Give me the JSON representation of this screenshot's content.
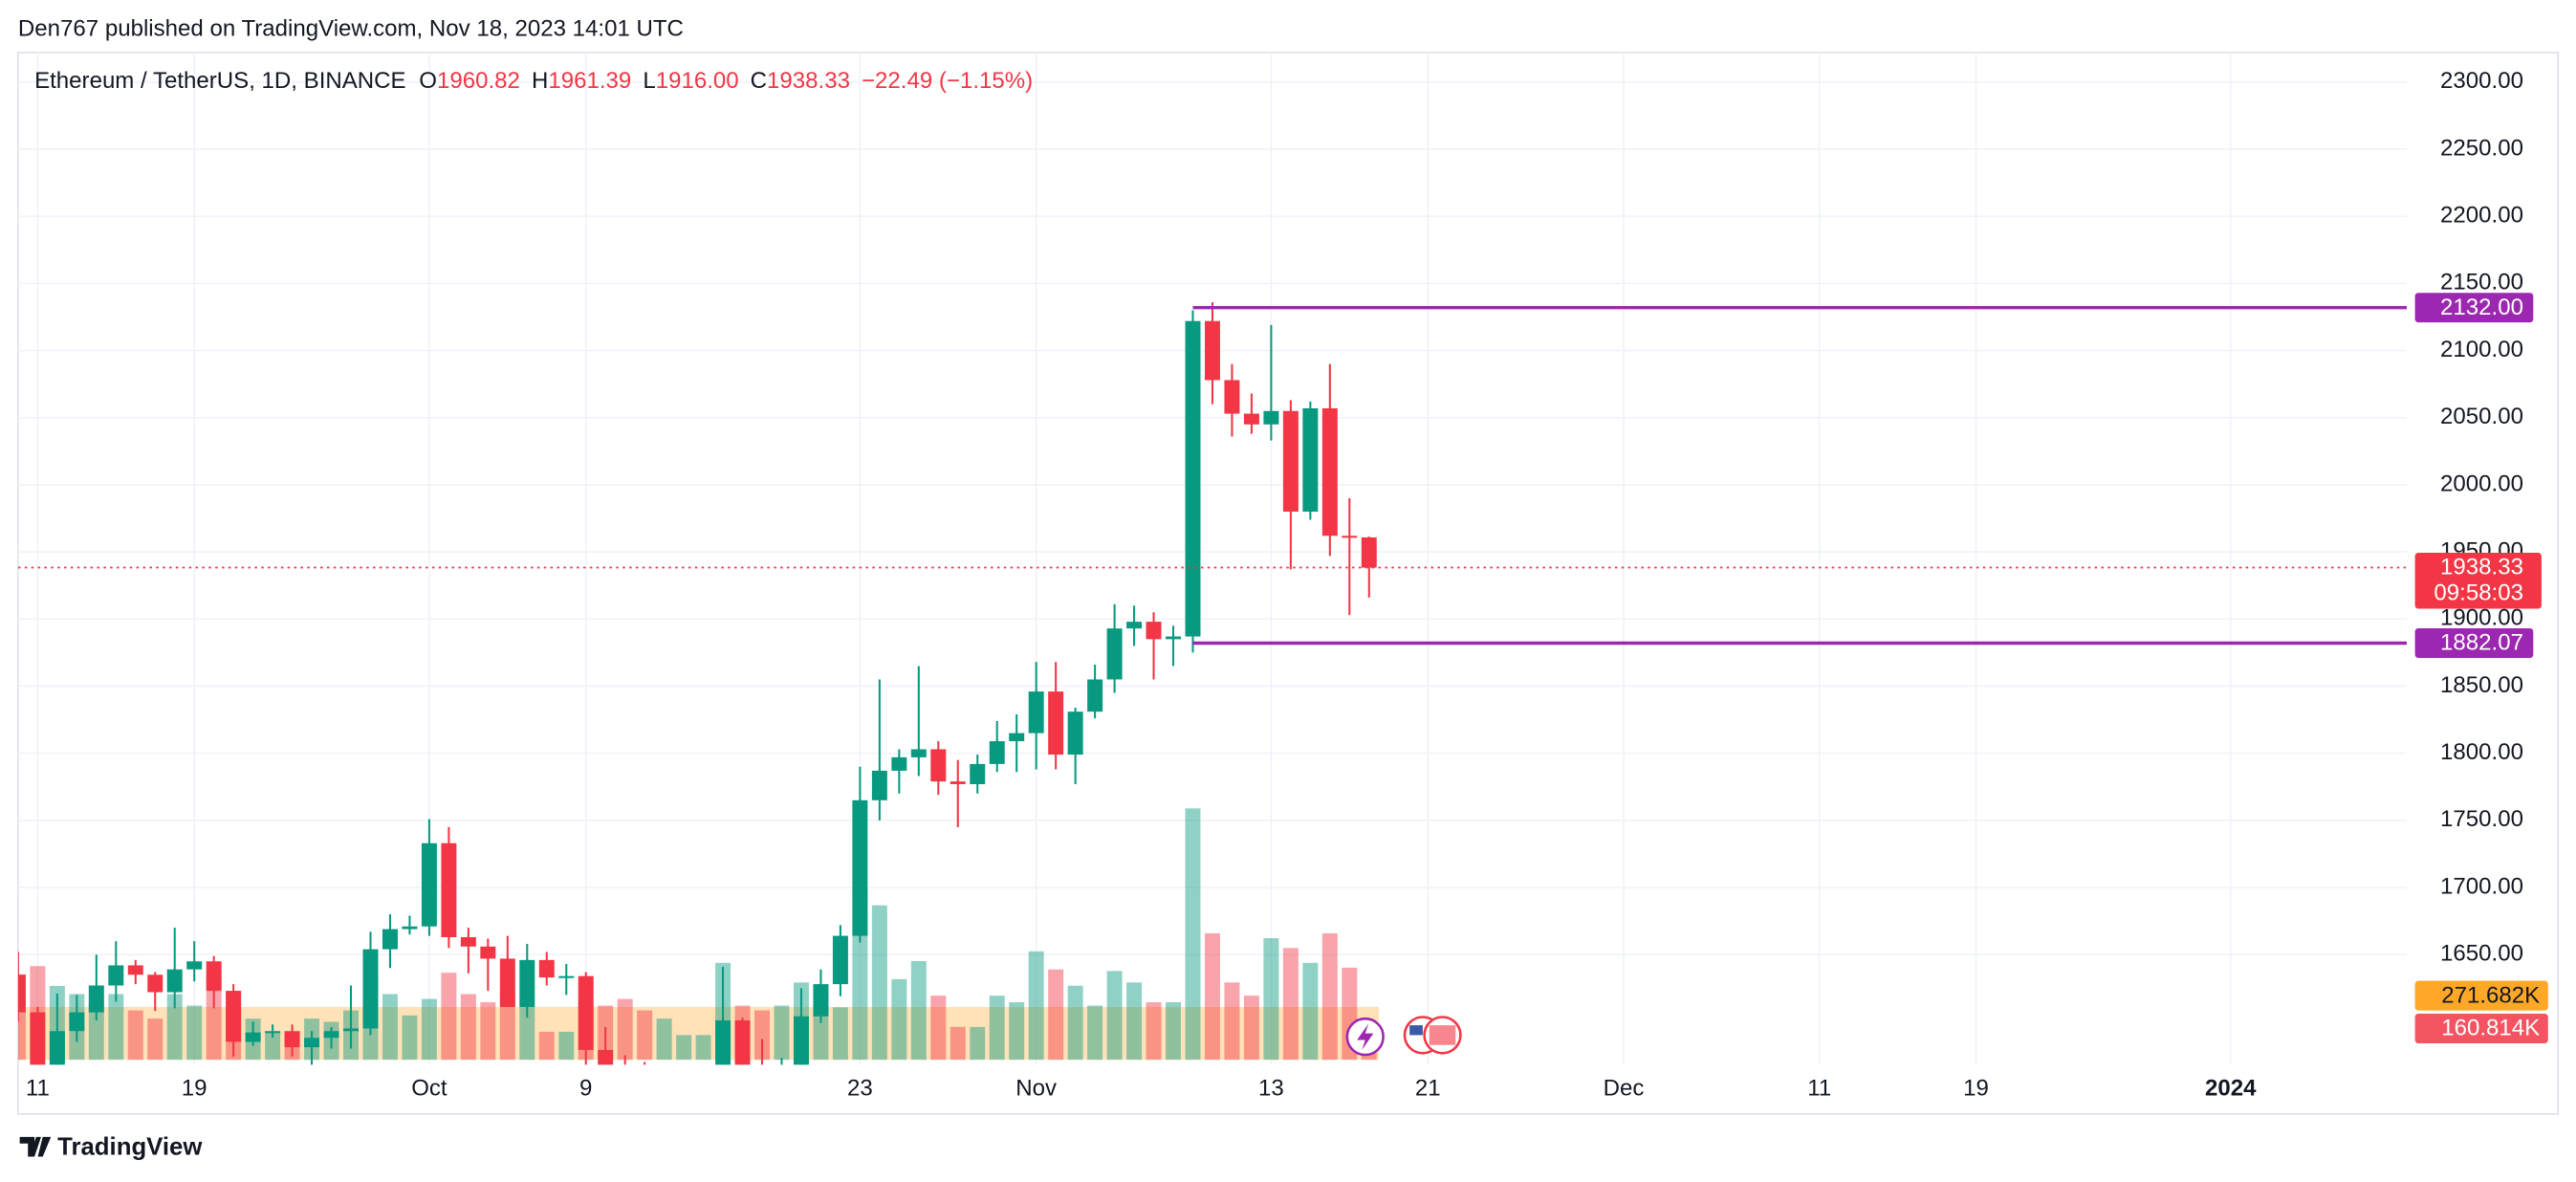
{
  "header": {
    "published": "Den767 published on TradingView.com, Nov 18, 2023 14:01 UTC"
  },
  "footer": {
    "brand": "TradingView"
  },
  "chart_data": {
    "type": "candlestick",
    "legend": {
      "symbol": "Ethereum / TetherUS, 1D, BINANCE",
      "fields": [
        {
          "key": "O",
          "value": "1960.82"
        },
        {
          "key": "H",
          "value": "1961.39"
        },
        {
          "key": "L",
          "value": "1916.00"
        },
        {
          "key": "C",
          "value": "1938.33"
        }
      ],
      "change": "−22.49 (−1.15%)"
    },
    "x": [
      "2023-09-10",
      "2023-09-11",
      "2023-09-12",
      "2023-09-13",
      "2023-09-14",
      "2023-09-15",
      "2023-09-16",
      "2023-09-17",
      "2023-09-18",
      "2023-09-19",
      "2023-09-20",
      "2023-09-21",
      "2023-09-22",
      "2023-09-23",
      "2023-09-24",
      "2023-09-25",
      "2023-09-26",
      "2023-09-27",
      "2023-09-28",
      "2023-09-29",
      "2023-09-30",
      "2023-10-01",
      "2023-10-02",
      "2023-10-03",
      "2023-10-04",
      "2023-10-05",
      "2023-10-06",
      "2023-10-07",
      "2023-10-08",
      "2023-10-09",
      "2023-10-10",
      "2023-10-11",
      "2023-10-12",
      "2023-10-13",
      "2023-10-14",
      "2023-10-15",
      "2023-10-16",
      "2023-10-17",
      "2023-10-18",
      "2023-10-19",
      "2023-10-20",
      "2023-10-21",
      "2023-10-22",
      "2023-10-23",
      "2023-10-24",
      "2023-10-25",
      "2023-10-26",
      "2023-10-27",
      "2023-10-28",
      "2023-10-29",
      "2023-10-30",
      "2023-10-31",
      "2023-11-01",
      "2023-11-02",
      "2023-11-03",
      "2023-11-04",
      "2023-11-05",
      "2023-11-06",
      "2023-11-07",
      "2023-11-08",
      "2023-11-09",
      "2023-11-10",
      "2023-11-11",
      "2023-11-12",
      "2023-11-13",
      "2023-11-14",
      "2023-11-15",
      "2023-11-16",
      "2023-11-17",
      "2023-11-18"
    ],
    "open": [
      1635,
      1607,
      1552,
      1593,
      1607,
      1627,
      1642,
      1635,
      1622,
      1639,
      1645,
      1623,
      1585,
      1592,
      1593,
      1581,
      1588,
      1593,
      1595,
      1654,
      1669,
      1671,
      1733,
      1663,
      1656,
      1647,
      1611,
      1646,
      1633,
      1634,
      1579,
      1567,
      1566,
      1539,
      1552,
      1555,
      1557,
      1601,
      1566,
      1565,
      1567,
      1604,
      1628,
      1664,
      1765,
      1787,
      1797,
      1803,
      1779,
      1777,
      1792,
      1809,
      1815,
      1846,
      1799,
      1831,
      1855,
      1893,
      1898,
      1885,
      1887,
      2122,
      2078,
      2053,
      2045,
      2055,
      1980,
      2057,
      1962,
      1960.82
    ],
    "high": [
      1652,
      1611,
      1621,
      1620,
      1650,
      1660,
      1646,
      1637,
      1670,
      1660,
      1649,
      1628,
      1600,
      1598,
      1598,
      1593,
      1596,
      1627,
      1667,
      1680,
      1679,
      1751,
      1745,
      1670,
      1662,
      1664,
      1658,
      1652,
      1643,
      1637,
      1596,
      1575,
      1570,
      1566,
      1564,
      1567,
      1641,
      1603,
      1587,
      1573,
      1625,
      1639,
      1672,
      1790,
      1855,
      1803,
      1865,
      1809,
      1795,
      1799,
      1824,
      1829,
      1868,
      1868,
      1834,
      1866,
      1911,
      1910,
      1905,
      1895,
      2130,
      2136,
      2090,
      2068,
      2119,
      2063,
      2062,
      2090,
      1990,
      1961.39
    ],
    "low": [
      1600,
      1531,
      1547,
      1585,
      1601,
      1615,
      1628,
      1608,
      1610,
      1630,
      1610,
      1574,
      1582,
      1588,
      1574,
      1564,
      1580,
      1580,
      1590,
      1640,
      1665,
      1664,
      1655,
      1636,
      1623,
      1611,
      1603,
      1627,
      1620,
      1555,
      1560,
      1545,
      1521,
      1538,
      1549,
      1549,
      1555,
      1560,
      1552,
      1547,
      1565,
      1599,
      1619,
      1659,
      1750,
      1770,
      1783,
      1769,
      1745,
      1770,
      1786,
      1786,
      1788,
      1788,
      1777,
      1826,
      1845,
      1880,
      1855,
      1865,
      1875,
      2060,
      2036,
      2038,
      2033,
      1937,
      1974,
      1947,
      1903,
      1916
    ],
    "close": [
      1607,
      1552,
      1593,
      1607,
      1627,
      1642,
      1635,
      1622,
      1639,
      1645,
      1623,
      1585,
      1592,
      1593,
      1581,
      1588,
      1593,
      1595,
      1654,
      1669,
      1671,
      1733,
      1663,
      1656,
      1647,
      1611,
      1646,
      1633,
      1634,
      1579,
      1567,
      1566,
      1539,
      1552,
      1555,
      1557,
      1601,
      1566,
      1565,
      1567,
      1604,
      1628,
      1664,
      1765,
      1787,
      1797,
      1803,
      1779,
      1777,
      1792,
      1809,
      1815,
      1846,
      1799,
      1831,
      1855,
      1893,
      1898,
      1885,
      1887,
      2122,
      2078,
      2053,
      2045,
      2055,
      1980,
      2057,
      1962,
      1961,
      1938.33
    ],
    "up_color": "#089981",
    "down_color": "#f23645",
    "volume": {
      "values": [
        440,
        482,
        380,
        338,
        296,
        338,
        254,
        212,
        338,
        279,
        448,
        355,
        212,
        144,
        144,
        212,
        195,
        254,
        440,
        338,
        228,
        313,
        448,
        338,
        296,
        338,
        279,
        144,
        144,
        296,
        279,
        313,
        254,
        212,
        127,
        127,
        499,
        279,
        254,
        279,
        398,
        279,
        270,
        888,
        795,
        415,
        508,
        330,
        169,
        169,
        330,
        296,
        558,
        465,
        381,
        279,
        457,
        398,
        296,
        296,
        1294,
        651,
        398,
        330,
        626,
        575,
        499,
        651,
        474,
        160.814
      ],
      "last_label": "160.814K",
      "ma": {
        "value": 271.682,
        "label": "271.682K",
        "color": "#ff9800"
      }
    },
    "price_line": {
      "value": 1938.33,
      "label": "1938.33",
      "countdown": "09:58:03"
    },
    "hline_color": "#9c27b0",
    "hlines": [
      {
        "start": "2023-11-09",
        "value": 2132,
        "label": "2132.00"
      },
      {
        "start": "2023-11-09",
        "value": 1882.07,
        "label": "1882.07"
      }
    ],
    "xlim": [
      "2023-09-10",
      "2024-01-10"
    ],
    "xticks": [
      {
        "value": "2023-09-11",
        "label": "11"
      },
      {
        "value": "2023-09-19",
        "label": "19"
      },
      {
        "value": "2023-10-01",
        "label": "Oct"
      },
      {
        "value": "2023-10-09",
        "label": "9"
      },
      {
        "value": "2023-10-23",
        "label": "23"
      },
      {
        "value": "2023-11-01",
        "label": "Nov"
      },
      {
        "value": "2023-11-13",
        "label": "13"
      },
      {
        "value": "2023-11-21",
        "label": "21"
      },
      {
        "value": "2023-12-01",
        "label": "Dec"
      },
      {
        "value": "2023-12-11",
        "label": "11"
      },
      {
        "value": "2023-12-19",
        "label": "19"
      },
      {
        "value": "2024-01-01",
        "label": "2024"
      }
    ],
    "ylim": [
      1568,
      2322
    ],
    "yticks": [
      {
        "value": 1650,
        "label": "1650.00"
      },
      {
        "value": 1700,
        "label": "1700.00"
      },
      {
        "value": 1750,
        "label": "1750.00"
      },
      {
        "value": 1800,
        "label": "1800.00"
      },
      {
        "value": 1850,
        "label": "1850.00"
      },
      {
        "value": 1900,
        "label": "1900.00"
      },
      {
        "value": 1950,
        "label": "1950.00"
      },
      {
        "value": 2000,
        "label": "2000.00"
      },
      {
        "value": 2050,
        "label": "2050.00"
      },
      {
        "value": 2100,
        "label": "2100.00"
      },
      {
        "value": 2150,
        "label": "2150.00"
      },
      {
        "value": 2200,
        "label": "2200.00"
      },
      {
        "value": 2250,
        "label": "2250.00"
      },
      {
        "value": 2300,
        "label": "2300.00"
      }
    ],
    "grid": true
  }
}
